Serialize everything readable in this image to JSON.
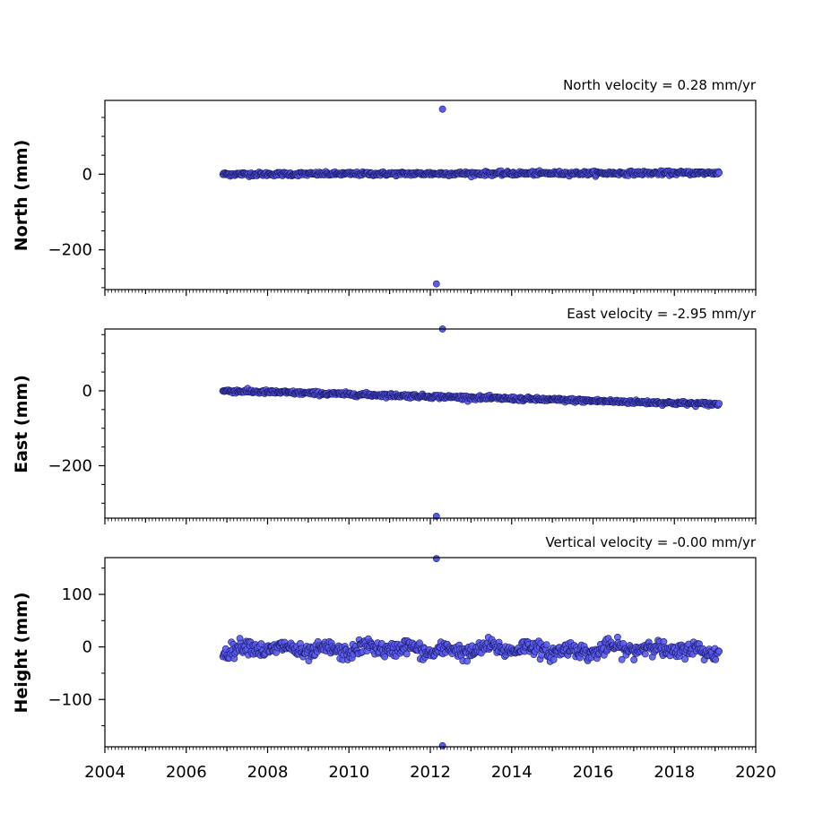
{
  "chart_data": [
    {
      "type": "scatter",
      "annotation": "North velocity = 0.28 mm/yr",
      "ylabel": "North (mm)",
      "xlim": [
        2004,
        2020
      ],
      "ylim": [
        -305,
        195
      ],
      "yticks": [
        0,
        -200
      ],
      "yticklabels": [
        "0",
        "−200"
      ],
      "trend": {
        "x0": 2006.9,
        "y0": 0,
        "x1": 2019.1,
        "y1": 3.4
      },
      "noise": 2.5,
      "wave": 0,
      "outliers": [
        {
          "x": 2012.3,
          "y": 172
        },
        {
          "x": 2012.15,
          "y": -290
        }
      ],
      "marker_color": "#5b5bef",
      "edge_color": "#1a1a66"
    },
    {
      "type": "scatter",
      "annotation": "East velocity = -2.95 mm/yr",
      "ylabel": "East (mm)",
      "xlim": [
        2004,
        2020
      ],
      "ylim": [
        -340,
        165
      ],
      "yticks": [
        0,
        -200
      ],
      "yticklabels": [
        "0",
        "−200"
      ],
      "trend": {
        "x0": 2006.9,
        "y0": 0,
        "x1": 2019.1,
        "y1": -36
      },
      "noise": 2.5,
      "wave": 0,
      "outliers": [
        {
          "x": 2012.3,
          "y": 165
        },
        {
          "x": 2012.15,
          "y": -335
        }
      ],
      "marker_color": "#5b5bef",
      "edge_color": "#1a1a66"
    },
    {
      "type": "scatter",
      "annotation": "Vertical velocity = -0.00 mm/yr",
      "ylabel": "Height (mm)",
      "xlim": [
        2004,
        2020
      ],
      "xticks": [
        2004,
        2006,
        2008,
        2010,
        2012,
        2014,
        2016,
        2018,
        2020
      ],
      "xticklabels": [
        "2004",
        "2006",
        "2008",
        "2010",
        "2012",
        "2014",
        "2016",
        "2018",
        "2020"
      ],
      "ylim": [
        -190,
        170
      ],
      "yticks": [
        100,
        0,
        -100
      ],
      "yticklabels": [
        "100",
        "0",
        "−100"
      ],
      "trend": {
        "x0": 2006.9,
        "y0": -5,
        "x1": 2019.1,
        "y1": -5
      },
      "noise": 7,
      "wave": 6,
      "outliers": [
        {
          "x": 2012.15,
          "y": 168
        },
        {
          "x": 2012.3,
          "y": -188
        }
      ],
      "marker_color": "#5b5bef",
      "edge_color": "#1a1a66"
    }
  ]
}
